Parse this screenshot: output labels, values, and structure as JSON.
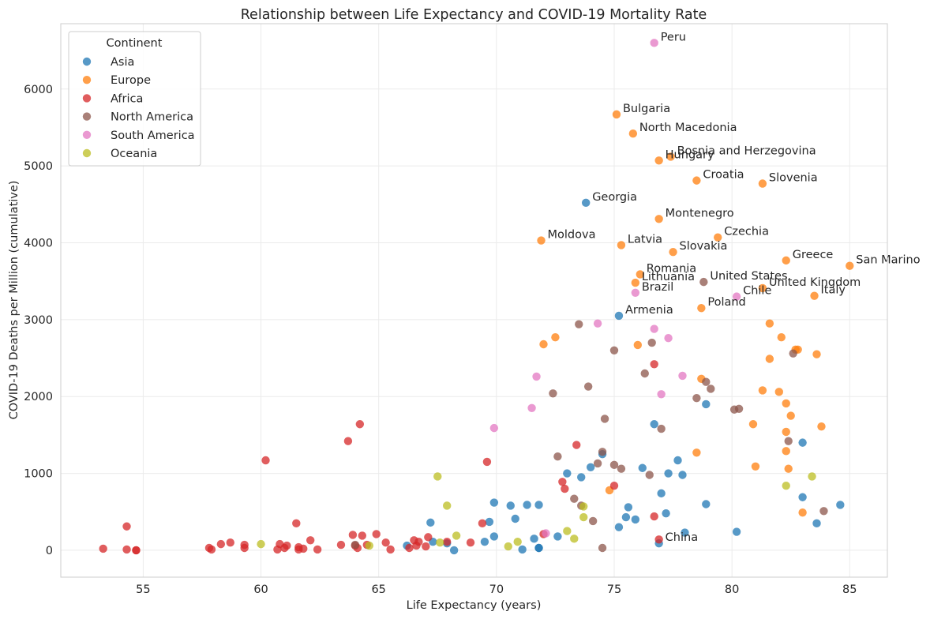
{
  "chart_data": {
    "type": "scatter",
    "title": "Relationship between Life Expectancy and COVID-19 Mortality Rate",
    "xlabel": "Life Expectancy (years)",
    "ylabel": "COVID-19 Deaths per Million (cumulative)",
    "xlim": [
      51.5,
      86.6
    ],
    "ylim": [
      -350,
      6850
    ],
    "xticks": [
      55,
      60,
      65,
      70,
      75,
      80,
      85
    ],
    "yticks": [
      0,
      1000,
      2000,
      3000,
      4000,
      5000,
      6000
    ],
    "grid": true,
    "legend": {
      "title": "Continent",
      "placement": "top-left"
    },
    "series": [
      {
        "name": "Asia",
        "color": "#1f77b4",
        "points": [
          [
            73.8,
            4520
          ],
          [
            75.2,
            3050
          ],
          [
            78.9,
            1900
          ],
          [
            76.7,
            1640
          ],
          [
            83.0,
            1400
          ],
          [
            74.5,
            1250
          ],
          [
            77.7,
            1170
          ],
          [
            73.0,
            1000
          ],
          [
            77.3,
            1000
          ],
          [
            77.9,
            980
          ],
          [
            74.0,
            1080
          ],
          [
            76.2,
            1070
          ],
          [
            73.6,
            950
          ],
          [
            77.0,
            740
          ],
          [
            83.0,
            690
          ],
          [
            69.9,
            620
          ],
          [
            71.3,
            590
          ],
          [
            71.8,
            590
          ],
          [
            70.6,
            580
          ],
          [
            75.6,
            560
          ],
          [
            84.6,
            590
          ],
          [
            78.9,
            600
          ],
          [
            77.2,
            480
          ],
          [
            70.8,
            410
          ],
          [
            75.5,
            430
          ],
          [
            75.9,
            400
          ],
          [
            69.7,
            370
          ],
          [
            67.2,
            360
          ],
          [
            83.6,
            350
          ],
          [
            80.2,
            240
          ],
          [
            78.0,
            230
          ],
          [
            75.2,
            300
          ],
          [
            72.6,
            180
          ],
          [
            69.9,
            180
          ],
          [
            71.6,
            150
          ],
          [
            67.3,
            110
          ],
          [
            69.5,
            110
          ],
          [
            67.9,
            90
          ],
          [
            76.9,
            90
          ],
          [
            66.2,
            60
          ],
          [
            71.8,
            30
          ],
          [
            71.8,
            30
          ],
          [
            71.1,
            10
          ],
          [
            68.2,
            0
          ]
        ]
      },
      {
        "name": "Europe",
        "color": "#ff7f0e",
        "points": [
          [
            75.1,
            5670
          ],
          [
            75.8,
            5420
          ],
          [
            77.4,
            5120
          ],
          [
            76.9,
            5070
          ],
          [
            78.5,
            4810
          ],
          [
            81.3,
            4770
          ],
          [
            76.9,
            4310
          ],
          [
            79.4,
            4070
          ],
          [
            71.9,
            4030
          ],
          [
            75.3,
            3970
          ],
          [
            77.5,
            3880
          ],
          [
            82.3,
            3770
          ],
          [
            85.0,
            3700
          ],
          [
            76.1,
            3590
          ],
          [
            75.9,
            3480
          ],
          [
            81.3,
            3410
          ],
          [
            83.5,
            3310
          ],
          [
            78.7,
            3150
          ],
          [
            81.6,
            2950
          ],
          [
            72.5,
            2770
          ],
          [
            82.1,
            2770
          ],
          [
            72.0,
            2680
          ],
          [
            76.0,
            2670
          ],
          [
            82.8,
            2610
          ],
          [
            82.7,
            2610
          ],
          [
            83.6,
            2550
          ],
          [
            81.6,
            2490
          ],
          [
            78.7,
            2230
          ],
          [
            81.3,
            2080
          ],
          [
            82.0,
            2060
          ],
          [
            82.3,
            1910
          ],
          [
            82.5,
            1750
          ],
          [
            83.8,
            1610
          ],
          [
            80.9,
            1640
          ],
          [
            82.3,
            1540
          ],
          [
            82.3,
            1290
          ],
          [
            78.5,
            1270
          ],
          [
            81.0,
            1090
          ],
          [
            82.4,
            1060
          ],
          [
            74.8,
            780
          ],
          [
            83.0,
            490
          ]
        ]
      },
      {
        "name": "Africa",
        "color": "#d62728",
        "points": [
          [
            64.2,
            1640
          ],
          [
            63.7,
            1420
          ],
          [
            73.4,
            1370
          ],
          [
            60.2,
            1170
          ],
          [
            69.6,
            1150
          ],
          [
            72.8,
            890
          ],
          [
            75.0,
            840
          ],
          [
            72.9,
            800
          ],
          [
            76.7,
            2420
          ],
          [
            69.4,
            350
          ],
          [
            76.7,
            440
          ],
          [
            76.9,
            140
          ],
          [
            72.0,
            210
          ],
          [
            54.3,
            310
          ],
          [
            61.5,
            350
          ],
          [
            64.9,
            210
          ],
          [
            64.3,
            190
          ],
          [
            63.9,
            200
          ],
          [
            66.5,
            130
          ],
          [
            67.1,
            170
          ],
          [
            66.7,
            110
          ],
          [
            65.3,
            100
          ],
          [
            68.9,
            100
          ],
          [
            67.9,
            110
          ],
          [
            62.1,
            130
          ],
          [
            58.3,
            80
          ],
          [
            58.7,
            100
          ],
          [
            60.8,
            80
          ],
          [
            59.3,
            70
          ],
          [
            61.1,
            60
          ],
          [
            63.4,
            70
          ],
          [
            64.0,
            60
          ],
          [
            64.5,
            70
          ],
          [
            66.6,
            60
          ],
          [
            67.0,
            50
          ],
          [
            57.8,
            30
          ],
          [
            57.9,
            10
          ],
          [
            53.3,
            20
          ],
          [
            54.3,
            10
          ],
          [
            54.7,
            0
          ],
          [
            54.7,
            0
          ],
          [
            59.3,
            30
          ],
          [
            60.7,
            10
          ],
          [
            61.0,
            30
          ],
          [
            61.6,
            40
          ],
          [
            61.8,
            20
          ],
          [
            62.4,
            10
          ],
          [
            64.1,
            30
          ],
          [
            65.5,
            10
          ],
          [
            66.3,
            30
          ],
          [
            61.6,
            10
          ]
        ]
      },
      {
        "name": "North America",
        "color": "#8c564b",
        "points": [
          [
            78.8,
            3490
          ],
          [
            73.5,
            2940
          ],
          [
            75.0,
            2600
          ],
          [
            76.6,
            2700
          ],
          [
            82.6,
            2560
          ],
          [
            78.9,
            2190
          ],
          [
            79.1,
            2100
          ],
          [
            73.9,
            2130
          ],
          [
            76.3,
            2300
          ],
          [
            72.4,
            2040
          ],
          [
            78.5,
            1980
          ],
          [
            80.3,
            1840
          ],
          [
            80.1,
            1830
          ],
          [
            77.0,
            1580
          ],
          [
            74.6,
            1710
          ],
          [
            82.4,
            1420
          ],
          [
            74.5,
            1280
          ],
          [
            72.6,
            1220
          ],
          [
            74.3,
            1130
          ],
          [
            75.0,
            1110
          ],
          [
            75.3,
            1060
          ],
          [
            76.5,
            980
          ],
          [
            73.3,
            670
          ],
          [
            73.6,
            580
          ],
          [
            83.9,
            510
          ],
          [
            74.1,
            380
          ],
          [
            64.0,
            70
          ],
          [
            74.5,
            30
          ]
        ]
      },
      {
        "name": "South America",
        "color": "#e377c2",
        "points": [
          [
            76.7,
            6600
          ],
          [
            80.2,
            3300
          ],
          [
            75.9,
            3350
          ],
          [
            74.3,
            2950
          ],
          [
            76.7,
            2880
          ],
          [
            77.3,
            2760
          ],
          [
            71.7,
            2260
          ],
          [
            77.9,
            2270
          ],
          [
            77.0,
            2030
          ],
          [
            71.5,
            1850
          ],
          [
            69.9,
            1590
          ],
          [
            72.1,
            220
          ]
        ]
      },
      {
        "name": "Oceania",
        "color": "#bcbd22",
        "points": [
          [
            67.5,
            960
          ],
          [
            83.4,
            960
          ],
          [
            67.9,
            580
          ],
          [
            73.7,
            570
          ],
          [
            82.3,
            840
          ],
          [
            73.7,
            430
          ],
          [
            73.0,
            250
          ],
          [
            68.3,
            190
          ],
          [
            73.3,
            150
          ],
          [
            70.9,
            110
          ],
          [
            67.6,
            100
          ],
          [
            60.0,
            80
          ],
          [
            64.6,
            60
          ],
          [
            70.5,
            50
          ]
        ]
      }
    ],
    "annotations": [
      {
        "text": "Peru",
        "x": 76.7,
        "y": 6600
      },
      {
        "text": "Bulgaria",
        "x": 75.1,
        "y": 5670
      },
      {
        "text": "North Macedonia",
        "x": 75.8,
        "y": 5420
      },
      {
        "text": "Bosnia and Herzegovina",
        "x": 77.4,
        "y": 5120
      },
      {
        "text": "Hungary",
        "x": 76.9,
        "y": 5070
      },
      {
        "text": "Croatia",
        "x": 78.5,
        "y": 4810
      },
      {
        "text": "Slovenia",
        "x": 81.3,
        "y": 4770
      },
      {
        "text": "Georgia",
        "x": 73.8,
        "y": 4520
      },
      {
        "text": "Montenegro",
        "x": 76.9,
        "y": 4310
      },
      {
        "text": "Czechia",
        "x": 79.4,
        "y": 4070
      },
      {
        "text": "Moldova",
        "x": 71.9,
        "y": 4030
      },
      {
        "text": "Latvia",
        "x": 75.3,
        "y": 3970
      },
      {
        "text": "Slovakia",
        "x": 77.5,
        "y": 3880
      },
      {
        "text": "Greece",
        "x": 82.3,
        "y": 3770
      },
      {
        "text": "San Marino",
        "x": 85.0,
        "y": 3700
      },
      {
        "text": "Romania",
        "x": 76.1,
        "y": 3590
      },
      {
        "text": "Lithuania",
        "x": 75.9,
        "y": 3480
      },
      {
        "text": "United States",
        "x": 78.8,
        "y": 3490
      },
      {
        "text": "United Kingdom",
        "x": 81.3,
        "y": 3410
      },
      {
        "text": "Brazil",
        "x": 75.9,
        "y": 3350
      },
      {
        "text": "Chile",
        "x": 80.2,
        "y": 3300
      },
      {
        "text": "Italy",
        "x": 83.5,
        "y": 3310
      },
      {
        "text": "Poland",
        "x": 78.7,
        "y": 3150
      },
      {
        "text": "Armenia",
        "x": 75.2,
        "y": 3050
      },
      {
        "text": "China",
        "x": 76.9,
        "y": 90
      }
    ]
  }
}
